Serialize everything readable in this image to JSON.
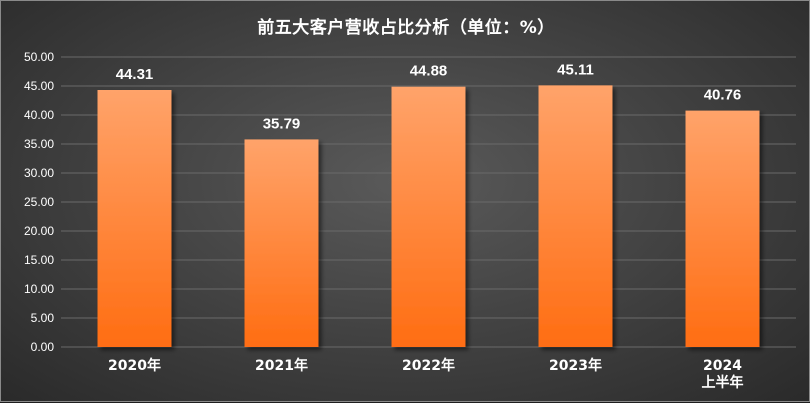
{
  "chart_data": {
    "type": "bar",
    "title": "前五大客户营收占比分析（单位：%）",
    "categories": [
      [
        "2020年"
      ],
      [
        "2021年"
      ],
      [
        "2022年"
      ],
      [
        "2023年"
      ],
      [
        "2024",
        "上半年"
      ]
    ],
    "values": [
      44.31,
      35.79,
      44.88,
      45.11,
      40.76
    ],
    "value_labels": [
      "44.31",
      "35.79",
      "44.88",
      "45.11",
      "40.76"
    ],
    "y_ticks": [
      "0.00",
      "5.00",
      "10.00",
      "15.00",
      "20.00",
      "25.00",
      "30.00",
      "35.00",
      "40.00",
      "45.00",
      "50.00"
    ],
    "ylim": [
      0,
      50
    ],
    "xlabel": "",
    "ylabel": "",
    "grid": true,
    "legend": "none",
    "colors": {
      "bar_top": "#ffa36a",
      "bar_bottom": "#ff6d12",
      "text": "#ffffff",
      "grid": "#6a6a6a"
    }
  }
}
